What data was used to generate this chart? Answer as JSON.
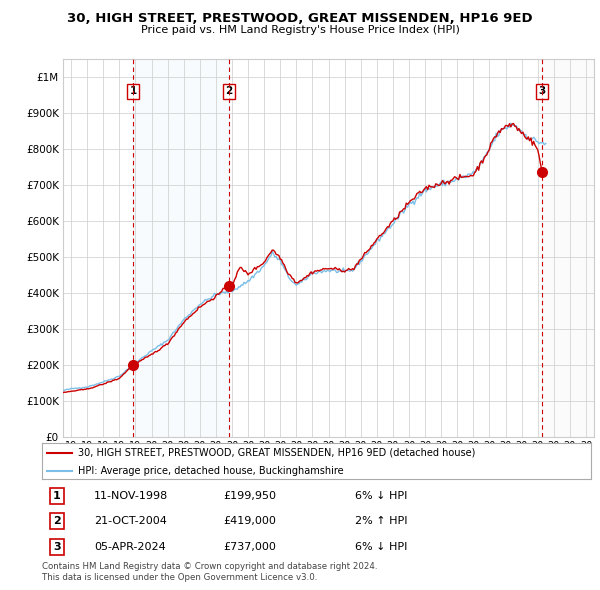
{
  "title": "30, HIGH STREET, PRESTWOOD, GREAT MISSENDEN, HP16 9ED",
  "subtitle": "Price paid vs. HM Land Registry's House Price Index (HPI)",
  "legend_line1": "30, HIGH STREET, PRESTWOOD, GREAT MISSENDEN, HP16 9ED (detached house)",
  "legend_line2": "HPI: Average price, detached house, Buckinghamshire",
  "footer1": "Contains HM Land Registry data © Crown copyright and database right 2024.",
  "footer2": "This data is licensed under the Open Government Licence v3.0.",
  "sale_points": [
    {
      "label": "1",
      "price": 199950,
      "x": 1998.865
    },
    {
      "label": "2",
      "price": 419000,
      "x": 2004.805
    },
    {
      "label": "3",
      "price": 737000,
      "x": 2024.262
    }
  ],
  "table_rows": [
    {
      "num": "1",
      "date": "11-NOV-1998",
      "price": "£199,950",
      "hpi": "6% ↓ HPI"
    },
    {
      "num": "2",
      "date": "21-OCT-2004",
      "price": "£419,000",
      "hpi": "2% ↑ HPI"
    },
    {
      "num": "3",
      "date": "05-APR-2024",
      "price": "£737,000",
      "hpi": "6% ↓ HPI"
    }
  ],
  "hpi_color": "#7bbfe8",
  "price_color": "#cc0000",
  "sale_marker_color": "#cc0000",
  "vline_color": "#cc0000",
  "bg_color": "#ffffff",
  "plot_bg": "#ffffff",
  "grid_color": "#cccccc",
  "ylim": [
    0,
    1050000
  ],
  "xlim_start": 1994.5,
  "xlim_end": 2027.5,
  "yticks": [
    0,
    100000,
    200000,
    300000,
    400000,
    500000,
    600000,
    700000,
    800000,
    900000,
    1000000
  ],
  "ytick_labels": [
    "£0",
    "£100K",
    "£200K",
    "£300K",
    "£400K",
    "£500K",
    "£600K",
    "£700K",
    "£800K",
    "£900K",
    "£1M"
  ],
  "xticks": [
    1995,
    1996,
    1997,
    1998,
    1999,
    2000,
    2001,
    2002,
    2003,
    2004,
    2005,
    2006,
    2007,
    2008,
    2009,
    2010,
    2011,
    2012,
    2013,
    2014,
    2015,
    2016,
    2017,
    2018,
    2019,
    2020,
    2021,
    2022,
    2023,
    2024,
    2025,
    2026,
    2027
  ],
  "hpi_anchors": {
    "1994.5": 128000,
    "1995.0": 133000,
    "1996.0": 138000,
    "1997.0": 152000,
    "1998.0": 168000,
    "1999.0": 205000,
    "2000.0": 238000,
    "2001.0": 268000,
    "2002.0": 325000,
    "2003.0": 368000,
    "2004.0": 395000,
    "2005.0": 405000,
    "2006.0": 432000,
    "2007.0": 475000,
    "2007.5": 510000,
    "2008.0": 488000,
    "2008.5": 445000,
    "2009.0": 420000,
    "2009.5": 435000,
    "2010.0": 455000,
    "2011.0": 462000,
    "2012.0": 458000,
    "2012.5": 462000,
    "2013.0": 488000,
    "2014.0": 542000,
    "2015.0": 592000,
    "2016.0": 645000,
    "2017.0": 685000,
    "2018.0": 702000,
    "2019.0": 715000,
    "2020.0": 732000,
    "2020.5": 758000,
    "2021.0": 800000,
    "2021.5": 840000,
    "2022.0": 858000,
    "2022.5": 870000,
    "2023.0": 848000,
    "2023.5": 830000,
    "2024.0": 820000,
    "2024.5": 815000
  },
  "price_anchors": {
    "1994.5": 122000,
    "1995.0": 126000,
    "1996.0": 132000,
    "1997.0": 146000,
    "1998.0": 162000,
    "1998.865": 199950,
    "1999.0": 202000,
    "2000.0": 228000,
    "2001.0": 258000,
    "2002.0": 318000,
    "2003.0": 360000,
    "2004.0": 390000,
    "2004.805": 419000,
    "2005.0": 422000,
    "2005.5": 470000,
    "2006.0": 452000,
    "2007.0": 485000,
    "2007.5": 520000,
    "2008.0": 498000,
    "2008.5": 455000,
    "2009.0": 428000,
    "2009.5": 440000,
    "2010.0": 458000,
    "2011.0": 468000,
    "2012.0": 462000,
    "2012.5": 465000,
    "2013.0": 492000,
    "2014.0": 548000,
    "2015.0": 598000,
    "2016.0": 650000,
    "2017.0": 690000,
    "2018.0": 705000,
    "2019.0": 718000,
    "2020.0": 728000,
    "2020.5": 762000,
    "2021.0": 802000,
    "2021.5": 845000,
    "2022.0": 862000,
    "2022.5": 868000,
    "2023.0": 845000,
    "2023.5": 828000,
    "2024.0": 800000,
    "2024.262": 737000,
    "2024.5": 742000
  }
}
